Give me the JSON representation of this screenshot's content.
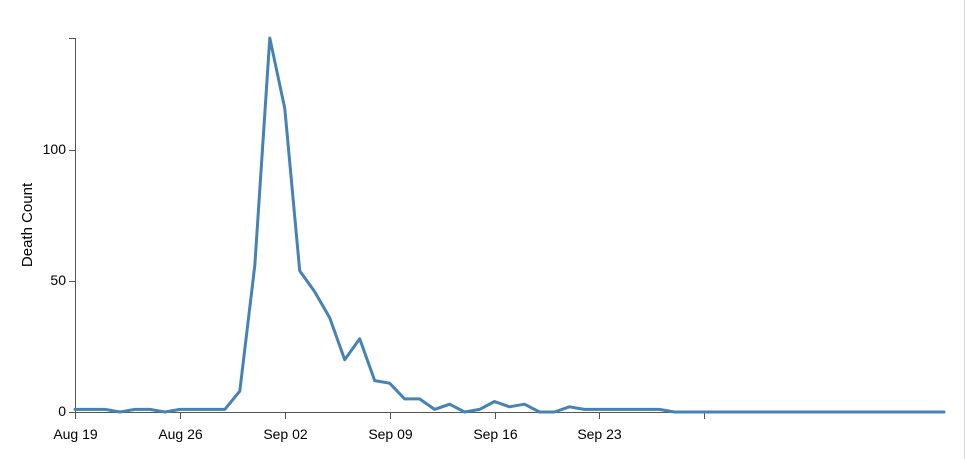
{
  "chart_data": {
    "type": "line",
    "title": "",
    "xlabel": "",
    "ylabel": "Death Count",
    "ylim": [
      0,
      143
    ],
    "xlim": [
      "1854-08-19",
      "1854-10-16"
    ],
    "x_ticks": [
      "Aug 19",
      "Aug 26",
      "Sep 02",
      "Sep 09",
      "Sep 16",
      "Sep 23"
    ],
    "y_ticks": [
      0,
      50,
      100
    ],
    "grid": false,
    "line_color": "#4682b4",
    "x": [
      "1854-08-19",
      "1854-08-20",
      "1854-08-21",
      "1854-08-22",
      "1854-08-23",
      "1854-08-24",
      "1854-08-25",
      "1854-08-26",
      "1854-08-27",
      "1854-08-28",
      "1854-08-29",
      "1854-08-30",
      "1854-08-31",
      "1854-09-01",
      "1854-09-02",
      "1854-09-03",
      "1854-09-04",
      "1854-09-05",
      "1854-09-06",
      "1854-09-07",
      "1854-09-08",
      "1854-09-09",
      "1854-09-10",
      "1854-09-11",
      "1854-09-12",
      "1854-09-13",
      "1854-09-14",
      "1854-09-15",
      "1854-09-16",
      "1854-09-17",
      "1854-09-18",
      "1854-09-19",
      "1854-09-20",
      "1854-09-21",
      "1854-09-22",
      "1854-09-23",
      "1854-09-24",
      "1854-09-25",
      "1854-09-26",
      "1854-09-27",
      "1854-09-28",
      "1854-09-29",
      "1854-10-16"
    ],
    "values": [
      1,
      1,
      1,
      0,
      1,
      1,
      0,
      1,
      1,
      1,
      1,
      8,
      56,
      143,
      116,
      54,
      46,
      36,
      20,
      28,
      12,
      11,
      5,
      5,
      1,
      3,
      0,
      1,
      4,
      2,
      3,
      0,
      0,
      2,
      1,
      1,
      1,
      1,
      1,
      1,
      0,
      0,
      0
    ]
  }
}
